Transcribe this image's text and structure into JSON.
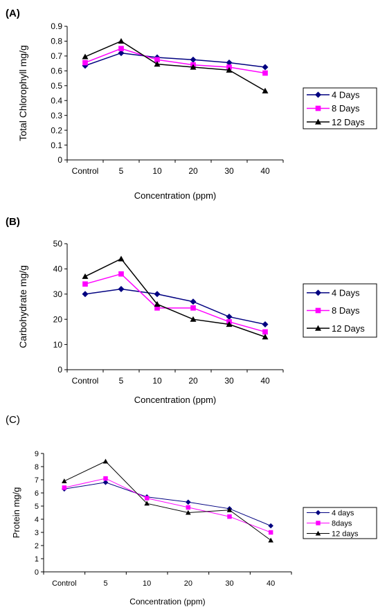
{
  "colors": {
    "s4": "#000080",
    "s8": "#ff00ff",
    "s12": "#000000"
  },
  "chart_data": [
    {
      "panel_label": "(A)",
      "type": "line",
      "categories": [
        "Control",
        "5",
        "10",
        "20",
        "30",
        "40"
      ],
      "xlabel": "Concentration (ppm)",
      "ylabel": "Total Chlorophyll mg/g",
      "ylim": [
        0,
        0.9
      ],
      "yticks": [
        "0",
        "0.1",
        "0.2",
        "0.3",
        "0.4",
        "0.5",
        "0.6",
        "0.7",
        "0.8",
        "0.9"
      ],
      "legend_position": "right",
      "series": [
        {
          "name": "4 Days",
          "marker": "diamond",
          "color": "#000080",
          "values": [
            0.635,
            0.72,
            0.69,
            0.675,
            0.655,
            0.625
          ]
        },
        {
          "name": "8 Days",
          "marker": "square",
          "color": "#ff00ff",
          "values": [
            0.655,
            0.75,
            0.675,
            0.64,
            0.625,
            0.585
          ]
        },
        {
          "name": "12 Days",
          "marker": "triangle",
          "color": "#000000",
          "values": [
            0.695,
            0.8,
            0.645,
            0.625,
            0.605,
            0.465
          ]
        }
      ]
    },
    {
      "panel_label": "(B)",
      "type": "line",
      "categories": [
        "Control",
        "5",
        "10",
        "20",
        "30",
        "40"
      ],
      "xlabel": "Concentration (ppm)",
      "ylabel": "Carbohydrate mg/g",
      "ylim": [
        0,
        50
      ],
      "yticks": [
        "0",
        "10",
        "20",
        "30",
        "40",
        "50"
      ],
      "legend_position": "right",
      "series": [
        {
          "name": "4 Days",
          "marker": "diamond",
          "color": "#000080",
          "values": [
            30,
            32,
            30,
            27,
            21,
            18
          ]
        },
        {
          "name": "8 Days",
          "marker": "square",
          "color": "#ff00ff",
          "values": [
            34,
            38,
            24.5,
            24.5,
            19,
            15
          ]
        },
        {
          "name": "12 Days",
          "marker": "triangle",
          "color": "#000000",
          "values": [
            37,
            44,
            26,
            20,
            18,
            13
          ]
        }
      ]
    },
    {
      "panel_label": "(C)",
      "type": "line",
      "categories": [
        "Control",
        "5",
        "10",
        "20",
        "30",
        "40"
      ],
      "xlabel": "Concentration (ppm)",
      "ylabel": "Protein mg/g",
      "ylim": [
        0,
        9
      ],
      "yticks": [
        "0",
        "1",
        "2",
        "3",
        "4",
        "5",
        "6",
        "7",
        "8",
        "9"
      ],
      "legend_position": "right",
      "series": [
        {
          "name": "4 days",
          "marker": "diamond",
          "color": "#000080",
          "values": [
            6.3,
            6.8,
            5.7,
            5.3,
            4.8,
            3.5
          ]
        },
        {
          "name": "8days",
          "marker": "square",
          "color": "#ff00ff",
          "values": [
            6.4,
            7.1,
            5.6,
            4.9,
            4.2,
            3.0
          ]
        },
        {
          "name": "12 days",
          "marker": "triangle",
          "color": "#000000",
          "values": [
            6.9,
            8.4,
            5.2,
            4.5,
            4.7,
            2.4
          ]
        }
      ]
    }
  ]
}
